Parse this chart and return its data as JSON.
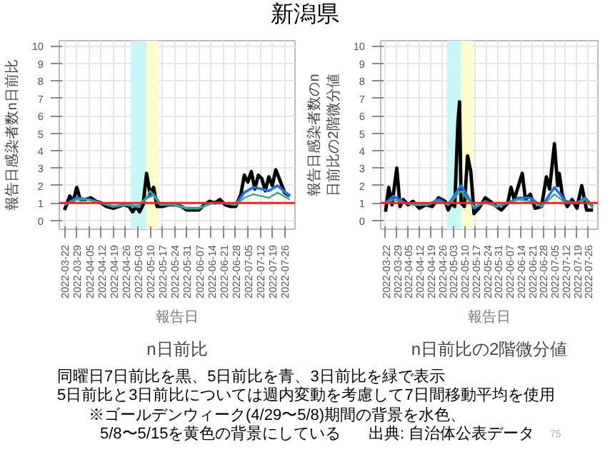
{
  "chart_data": [
    {
      "type": "line",
      "title": "n日前比",
      "xlabel": "報告日",
      "ylabel": "報告日感染者数n日前比",
      "annotations": [
        "新潟県",
        "同曜日7日前比を黒、5日前比を青、3日前比を緑で表示",
        "5日前比と3日前比については週内変動を考慮して7日間移動平均を使用",
        "※ゴールデンウィーク(4/29〜5/8)期間の背景を水色、",
        "5/8〜5/15を黄色の背景にしている",
        "出典: 自治体公表データ",
        "75"
      ],
      "series": [
        {
          "color": "#000000",
          "x": [
            "2022-03-22",
            "2022-03-25",
            "2022-03-27",
            "2022-03-29",
            "2022-03-31",
            "2022-04-03",
            "2022-04-06",
            "2022-04-09",
            "2022-04-12",
            "2022-04-15",
            "2022-04-19",
            "2022-04-22",
            "2022-04-25",
            "2022-04-28",
            "2022-04-30",
            "2022-05-02",
            "2022-05-04",
            "2022-05-06",
            "2022-05-08",
            "2022-05-10",
            "2022-05-12",
            "2022-05-14",
            "2022-05-17",
            "2022-05-21",
            "2022-05-25",
            "2022-05-28",
            "2022-05-31",
            "2022-06-03",
            "2022-06-07",
            "2022-06-10",
            "2022-06-13",
            "2022-06-16",
            "2022-06-19",
            "2022-06-22",
            "2022-06-25",
            "2022-06-28",
            "2022-07-01",
            "2022-07-03",
            "2022-07-05",
            "2022-07-07",
            "2022-07-09",
            "2022-07-11",
            "2022-07-13",
            "2022-07-15",
            "2022-07-17",
            "2022-07-19",
            "2022-07-21",
            "2022-07-23",
            "2022-07-26",
            "2022-07-29"
          ],
          "values": [
            0.6,
            1.4,
            1.1,
            1.9,
            1.2,
            1.2,
            1.3,
            1.1,
            1.0,
            0.8,
            0.7,
            0.8,
            0.9,
            0.8,
            0.5,
            0.8,
            0.5,
            0.9,
            2.7,
            1.5,
            1.9,
            0.8,
            0.8,
            0.9,
            0.9,
            0.8,
            0.6,
            0.6,
            0.6,
            0.9,
            1.1,
            1.0,
            1.2,
            0.9,
            0.8,
            0.8,
            1.5,
            2.6,
            2.2,
            2.8,
            1.8,
            2.6,
            2.4,
            1.7,
            2.5,
            2.0,
            2.9,
            2.4,
            1.6,
            1.4
          ]
        },
        {
          "color": "#1f6fff",
          "x": [
            "2022-03-22",
            "2022-03-29",
            "2022-04-05",
            "2022-04-12",
            "2022-04-19",
            "2022-04-26",
            "2022-05-03",
            "2022-05-08",
            "2022-05-12",
            "2022-05-16",
            "2022-05-24",
            "2022-05-31",
            "2022-06-07",
            "2022-06-14",
            "2022-06-21",
            "2022-06-28",
            "2022-07-03",
            "2022-07-08",
            "2022-07-13",
            "2022-07-17",
            "2022-07-22",
            "2022-07-29"
          ],
          "values": [
            0.9,
            1.3,
            1.2,
            1.0,
            0.8,
            0.9,
            0.8,
            1.3,
            1.5,
            0.9,
            0.9,
            0.7,
            0.7,
            1.0,
            1.0,
            0.9,
            1.6,
            1.9,
            1.8,
            1.7,
            2.0,
            1.4
          ]
        },
        {
          "color": "#2db37a",
          "x": [
            "2022-03-22",
            "2022-03-29",
            "2022-04-05",
            "2022-04-12",
            "2022-04-19",
            "2022-04-26",
            "2022-05-03",
            "2022-05-08",
            "2022-05-10",
            "2022-05-16",
            "2022-05-24",
            "2022-05-31",
            "2022-06-07",
            "2022-06-14",
            "2022-06-21",
            "2022-06-28",
            "2022-07-03",
            "2022-07-08",
            "2022-07-13",
            "2022-07-17",
            "2022-07-22",
            "2022-07-29"
          ],
          "values": [
            0.9,
            1.2,
            1.2,
            1.0,
            0.8,
            0.9,
            0.8,
            1.3,
            1.7,
            0.9,
            0.9,
            0.7,
            0.7,
            1.0,
            1.0,
            0.9,
            1.3,
            1.5,
            1.4,
            1.3,
            1.6,
            1.2
          ]
        }
      ],
      "ref_lines": [
        {
          "axis": "y",
          "value": 1,
          "color": "#ff2020"
        }
      ],
      "bands": [
        {
          "axis": "x",
          "from": "2022-04-29",
          "to": "2022-05-08",
          "color": "#c8f7f7"
        },
        {
          "axis": "x",
          "from": "2022-05-08",
          "to": "2022-05-15",
          "color": "#fdfdcc"
        }
      ],
      "xlim": [
        "2022-03-19",
        "2022-08-01"
      ],
      "xticks": [
        "2022-03-22",
        "2022-03-29",
        "2022-04-05",
        "2022-04-12",
        "2022-04-19",
        "2022-04-26",
        "2022-05-03",
        "2022-05-10",
        "2022-05-17",
        "2022-05-24",
        "2022-05-31",
        "2022-06-07",
        "2022-06-14",
        "2022-06-21",
        "2022-06-28",
        "2022-07-05",
        "2022-07-12",
        "2022-07-19",
        "2022-07-26"
      ],
      "ylim": [
        -0.5,
        10.3
      ],
      "yticks": [
        0,
        1,
        2,
        3,
        4,
        5,
        6,
        7,
        8,
        9,
        10
      ],
      "grid": true
    },
    {
      "type": "line",
      "title": "n日前比の2階微分値",
      "xlabel": "報告日",
      "ylabel": "報告日感染者数のn日前比の2階微分値",
      "series": [
        {
          "color": "#000000",
          "x": [
            "2022-03-22",
            "2022-03-24",
            "2022-03-26",
            "2022-03-29",
            "2022-03-31",
            "2022-04-02",
            "2022-04-05",
            "2022-04-08",
            "2022-04-12",
            "2022-04-16",
            "2022-04-20",
            "2022-04-24",
            "2022-04-28",
            "2022-04-30",
            "2022-05-02",
            "2022-05-04",
            "2022-05-06",
            "2022-05-07",
            "2022-05-08",
            "2022-05-10",
            "2022-05-12",
            "2022-05-14",
            "2022-05-16",
            "2022-05-19",
            "2022-05-23",
            "2022-05-26",
            "2022-05-30",
            "2022-06-02",
            "2022-06-06",
            "2022-06-08",
            "2022-06-10",
            "2022-06-12",
            "2022-06-15",
            "2022-06-17",
            "2022-06-20",
            "2022-06-23",
            "2022-06-27",
            "2022-06-30",
            "2022-07-02",
            "2022-07-05",
            "2022-07-07",
            "2022-07-08",
            "2022-07-10",
            "2022-07-13",
            "2022-07-16",
            "2022-07-19",
            "2022-07-22",
            "2022-07-25",
            "2022-07-29"
          ],
          "values": [
            0.5,
            1.9,
            0.9,
            3.0,
            0.8,
            1.2,
            0.9,
            1.1,
            0.7,
            0.9,
            0.8,
            1.3,
            1.1,
            0.6,
            1.0,
            0.8,
            5.6,
            6.8,
            1.0,
            0.8,
            3.7,
            2.8,
            0.4,
            0.7,
            1.3,
            1.1,
            0.8,
            0.6,
            1.0,
            1.9,
            1.2,
            1.8,
            2.7,
            1.2,
            1.5,
            0.7,
            0.8,
            2.5,
            1.8,
            4.4,
            2.0,
            2.7,
            1.4,
            0.8,
            1.2,
            0.7,
            2.0,
            0.6,
            0.6
          ]
        },
        {
          "color": "#1f6fff",
          "x": [
            "2022-03-22",
            "2022-03-27",
            "2022-04-03",
            "2022-04-10",
            "2022-04-17",
            "2022-04-24",
            "2022-04-30",
            "2022-05-05",
            "2022-05-08",
            "2022-05-12",
            "2022-05-16",
            "2022-05-23",
            "2022-05-30",
            "2022-06-06",
            "2022-06-13",
            "2022-06-20",
            "2022-06-27",
            "2022-07-05",
            "2022-07-12",
            "2022-07-19",
            "2022-07-24",
            "2022-07-29"
          ],
          "values": [
            1.0,
            1.4,
            1.0,
            0.9,
            0.9,
            1.2,
            0.9,
            1.6,
            2.0,
            1.4,
            0.7,
            1.1,
            0.8,
            1.0,
            1.3,
            1.3,
            0.8,
            1.9,
            1.1,
            1.0,
            1.3,
            0.8
          ]
        },
        {
          "color": "#2db37a",
          "x": [
            "2022-03-22",
            "2022-03-27",
            "2022-04-03",
            "2022-04-10",
            "2022-04-17",
            "2022-04-24",
            "2022-04-30",
            "2022-05-05",
            "2022-05-08",
            "2022-05-12",
            "2022-05-16",
            "2022-05-23",
            "2022-05-30",
            "2022-06-06",
            "2022-06-13",
            "2022-06-20",
            "2022-06-27",
            "2022-07-05",
            "2022-07-12",
            "2022-07-19",
            "2022-07-24",
            "2022-07-29"
          ],
          "values": [
            1.0,
            1.2,
            1.0,
            0.9,
            0.9,
            1.1,
            0.9,
            1.4,
            1.7,
            1.2,
            0.8,
            1.0,
            0.8,
            1.0,
            1.2,
            1.1,
            0.8,
            1.5,
            1.0,
            1.0,
            1.2,
            0.7
          ]
        }
      ],
      "ref_lines": [
        {
          "axis": "y",
          "value": 1,
          "color": "#ff2020"
        }
      ],
      "bands": [
        {
          "axis": "x",
          "from": "2022-04-29",
          "to": "2022-05-08",
          "color": "#c8f7f7"
        },
        {
          "axis": "x",
          "from": "2022-05-08",
          "to": "2022-05-15",
          "color": "#fdfdcc"
        }
      ],
      "xlim": [
        "2022-03-19",
        "2022-08-01"
      ],
      "xticks": [
        "2022-03-22",
        "2022-03-29",
        "2022-04-05",
        "2022-04-12",
        "2022-04-19",
        "2022-04-26",
        "2022-05-03",
        "2022-05-10",
        "2022-05-17",
        "2022-05-24",
        "2022-05-31",
        "2022-06-07",
        "2022-06-14",
        "2022-06-21",
        "2022-06-28",
        "2022-07-05",
        "2022-07-12",
        "2022-07-19",
        "2022-07-26"
      ],
      "ylim": [
        -0.5,
        10.3
      ],
      "yticks": [
        0,
        1,
        2,
        3,
        4,
        5,
        6,
        7,
        8,
        9,
        10
      ],
      "grid": true
    }
  ]
}
